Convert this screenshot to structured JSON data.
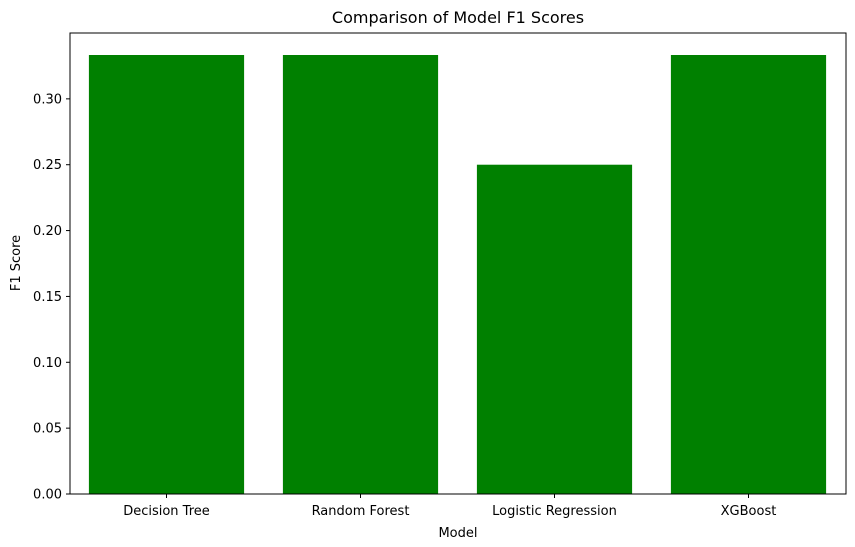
{
  "chart_data": {
    "type": "bar",
    "title": "Comparison of Model F1 Scores",
    "xlabel": "Model",
    "ylabel": "F1 Score",
    "categories": [
      "Decision Tree",
      "Random Forest",
      "Logistic Regression",
      "XGBoost"
    ],
    "values": [
      0.3333,
      0.3333,
      0.25,
      0.3333
    ],
    "ylim": [
      0,
      0.35
    ],
    "yticks": [
      0.0,
      0.05,
      0.1,
      0.15,
      0.2,
      0.25,
      0.3
    ],
    "ytick_labels": [
      "0.00",
      "0.05",
      "0.10",
      "0.15",
      "0.20",
      "0.25",
      "0.30"
    ],
    "bar_color": "#008000",
    "grid": false,
    "legend": false
  }
}
